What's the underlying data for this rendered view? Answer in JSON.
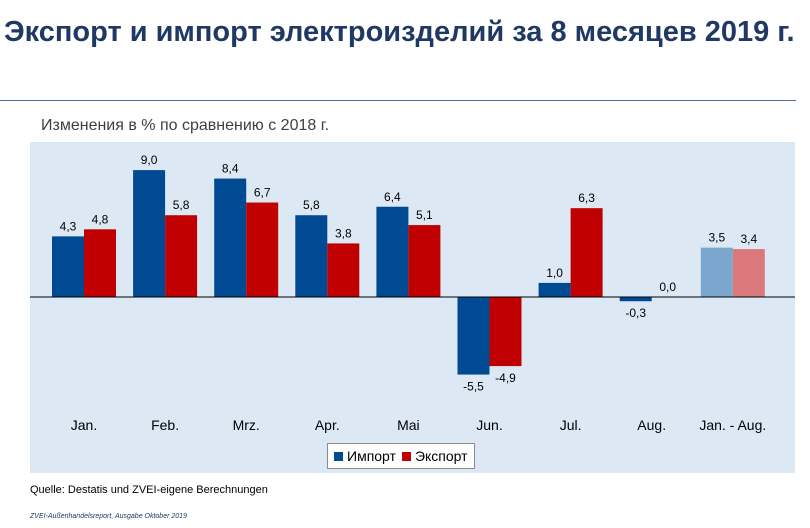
{
  "title": "Экспорт и импорт электроизделий за 8 месяцев 2019 г.",
  "subtitle": "Изменения в % по сравнению с 2018 г.",
  "source": "Quelle: Destatis und ZVEI-eigene Berechnungen",
  "footer": "ZVEI-Außenhandelsreport,   Ausgabe Oktober 2019",
  "legend": [
    {
      "name": "Импорт",
      "color": "#004a94"
    },
    {
      "name": "Экспорт",
      "color": "#c00000"
    }
  ],
  "chart_data": {
    "type": "bar",
    "title": "",
    "xlabel": "",
    "ylabel": "",
    "categories": [
      "Jan.",
      "Feb.",
      "Mrz.",
      "Apr.",
      "Mai",
      "Jun.",
      "Jul.",
      "Aug.",
      "Jan. - Aug."
    ],
    "series": [
      {
        "name": "Импорт",
        "values": [
          4.3,
          9.0,
          8.4,
          5.8,
          6.4,
          -5.5,
          1.0,
          -0.3,
          3.5
        ],
        "labels": [
          "4,3",
          "9,0",
          "8,4",
          "5,8",
          "6,4",
          "-5,5",
          "1,0",
          "-0,3",
          "3,5"
        ],
        "color": "#004a94",
        "summary_color": "#7ba7cf"
      },
      {
        "name": "Экспорт",
        "values": [
          4.8,
          5.8,
          6.7,
          3.8,
          5.1,
          -4.9,
          6.3,
          0.0,
          3.4
        ],
        "labels": [
          "4,8",
          "5,8",
          "6,7",
          "3,8",
          "5,1",
          "-4,9",
          "6,3",
          "0,0",
          "3,4"
        ],
        "color": "#c00000",
        "summary_color": "#d9797c"
      }
    ],
    "ylim": [
      -9,
      10
    ],
    "grid": false,
    "legend_position": "bottom"
  }
}
